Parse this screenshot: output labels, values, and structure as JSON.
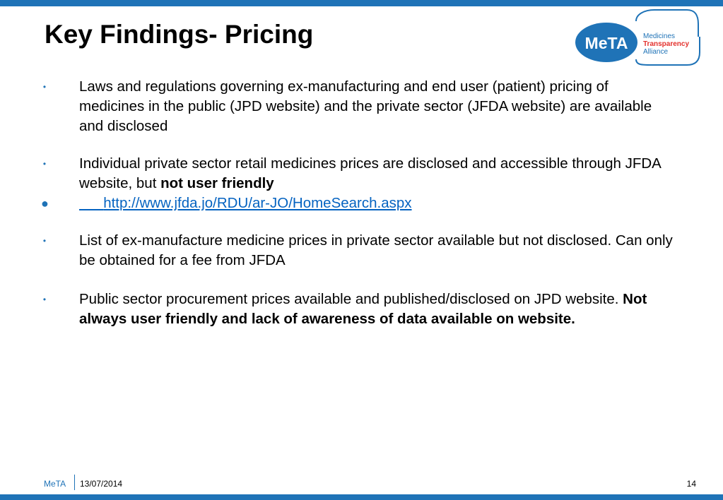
{
  "title": "Key Findings- Pricing",
  "logo": {
    "wordmark": "MeTA",
    "line1": "Medicines",
    "line2": "Transparency",
    "line3": "Alliance",
    "color_blue": "#1f73b7",
    "color_red": "#e3312d"
  },
  "bullets": [
    {
      "text": "Laws and regulations governing ex-manufacturing and end user (patient) pricing of medicines in the public (JPD website) and the private sector (JFDA website) are available and disclosed"
    },
    {
      "text": "Individual private sector retail medicines prices are disclosed and accessible through JFDA website, but ",
      "bold": "not user friendly"
    },
    {
      "indent": "      ",
      "link": "http://www.jfda.jo/RDU/ar-JO/HomeSearch.aspx"
    },
    {
      "text": "List of ex-manufacture medicine prices in private sector available but not disclosed. Can only be obtained for  a fee from JFDA"
    },
    {
      "text": "Public sector procurement prices available and published/disclosed on JPD website. ",
      "bold": "Not always user friendly and lack of awareness of data available on website."
    }
  ],
  "footer": {
    "brand": "MeTA",
    "date": "13/07/2014",
    "page_number": "14"
  },
  "colors": {
    "accent": "#1f73b7",
    "link": "#0563c1"
  }
}
